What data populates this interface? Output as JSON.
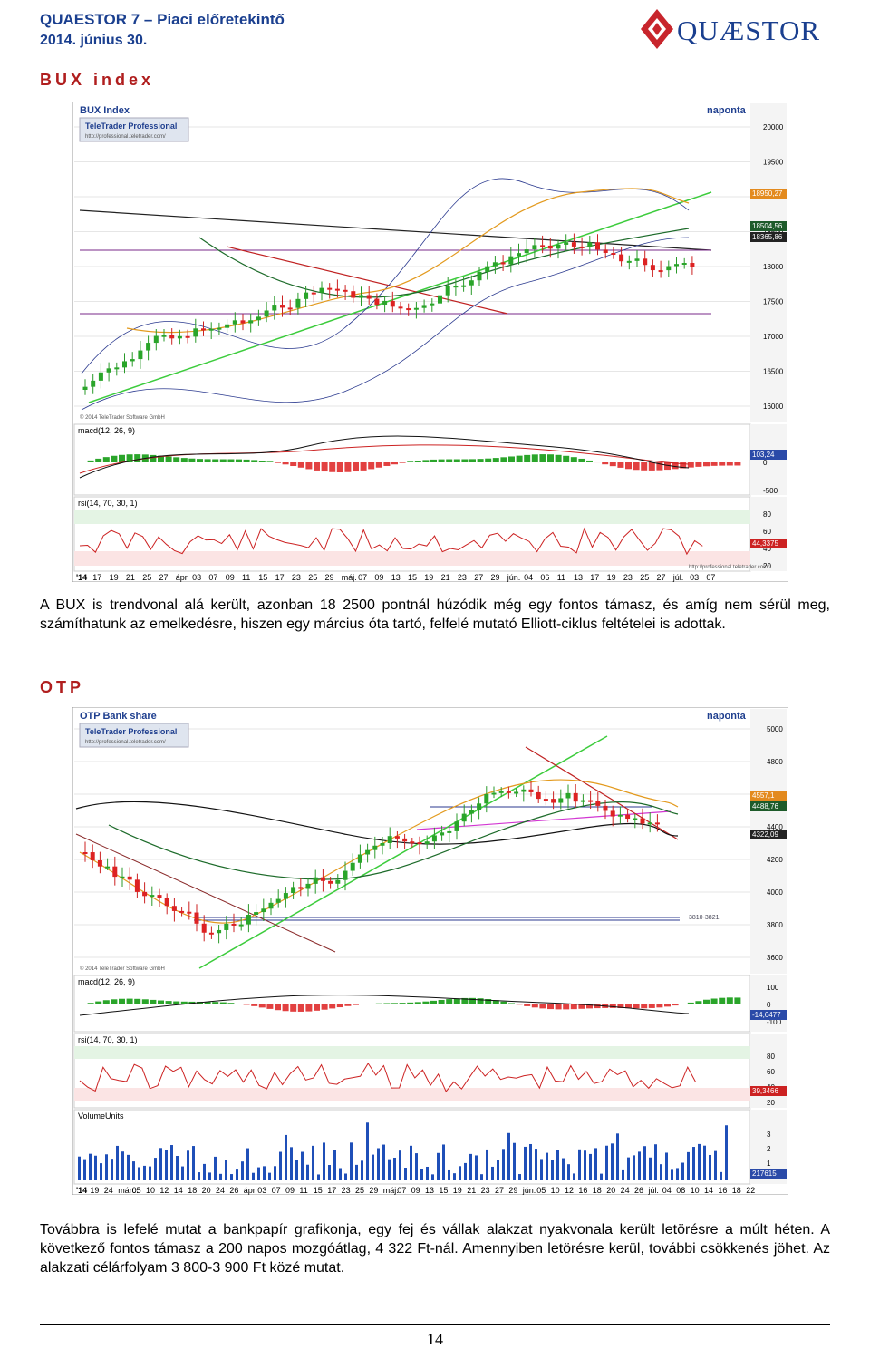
{
  "header": {
    "line1": "QUAESTOR 7 – Piaci előretekintő",
    "line2": "2014. június 30."
  },
  "logo": {
    "text": "QUÆSTOR",
    "color": "#b01e1e"
  },
  "sections": {
    "bux_heading": "BUX index",
    "otp_heading": "OTP"
  },
  "bux_chart": {
    "title": "BUX Index",
    "period": "naponta",
    "brand": "TeleTrader Professional",
    "brand_url": "http://professional.teletrader.com/",
    "copyright": "© 2014 TeleTrader Software GmbH",
    "footer_url": "http://professional.teletrader.com/",
    "price_ticks": [
      "20000",
      "19500",
      "19000",
      "18500",
      "18000",
      "17500",
      "17000",
      "16500",
      "16000"
    ],
    "price_labels": [
      "18950,27",
      "18504,56",
      "18365,86"
    ],
    "macd_label": "macd(12, 26, 9)",
    "macd_ticks": [
      "0",
      "-500"
    ],
    "macd_values": [
      "103,24"
    ],
    "rsi_label": "rsi(14, 70, 30, 1)",
    "rsi_ticks": [
      "80",
      "60",
      "40",
      "20"
    ],
    "rsi_value": "44,3375",
    "x_labels": [
      "'14",
      "17",
      "19",
      "21",
      "25",
      "27",
      "ápr.",
      "03",
      "07",
      "09",
      "11",
      "15",
      "17",
      "23",
      "25",
      "29",
      "máj.",
      "07",
      "09",
      "13",
      "15",
      "19",
      "21",
      "23",
      "27",
      "29",
      "jún.",
      "04",
      "06",
      "11",
      "13",
      "17",
      "19",
      "23",
      "25",
      "27",
      "júl.",
      "03",
      "07"
    ]
  },
  "bux_text": "A BUX is trendvonal alá került, azonban 18 2500 pontnál húzódik még egy fontos támasz, és amíg nem sérül meg, számíthatunk az emelkedésre, hiszen egy március óta tartó, felfelé mutató Elliott-ciklus feltételei is adottak.",
  "otp_chart": {
    "title": "OTP Bank share",
    "period": "naponta",
    "brand": "TeleTrader Professional",
    "brand_url": "http://professional.teletrader.com/",
    "copyright": "© 2014 TeleTrader Software GmbH",
    "footer_url": "http://professional.teletrader.com/",
    "price_ticks": [
      "5000",
      "4800",
      "4600",
      "4400",
      "4200",
      "4000",
      "3800",
      "3600"
    ],
    "price_labels": [
      "4557,1",
      "4488,76",
      "4322,09"
    ],
    "support_label": "3810-3821",
    "macd_label": "macd(12, 26, 9)",
    "macd_ticks": [
      "100",
      "0",
      "-100"
    ],
    "macd_value": "-14,6477",
    "rsi_label": "rsi(14, 70, 30, 1)",
    "rsi_ticks": [
      "80",
      "60",
      "40",
      "20"
    ],
    "rsi_value": "39,3466",
    "vol_label": "VolumeUnits",
    "vol_ticks": [
      "3",
      "2",
      "1"
    ],
    "vol_value": "217615",
    "x_labels": [
      "'14",
      "19",
      "24",
      "márc.",
      "05",
      "10",
      "12",
      "14",
      "18",
      "20",
      "24",
      "26",
      "ápr.",
      "03",
      "07",
      "09",
      "11",
      "15",
      "17",
      "23",
      "25",
      "29",
      "máj.",
      "07",
      "09",
      "13",
      "15",
      "19",
      "21",
      "23",
      "27",
      "29",
      "jún.",
      "05",
      "10",
      "12",
      "16",
      "18",
      "20",
      "24",
      "26",
      "júl.",
      "04",
      "08",
      "10",
      "14",
      "16",
      "18",
      "22"
    ]
  },
  "otp_text": "Továbbra is lefelé mutat a bankpapír grafikonja, egy fej és vállak alakzat nyakvonala került letörésre a múlt héten. A következő fontos támasz a 200 napos mozgóátlag, 4 322 Ft-nál. Amennyiben letörésre kerül, további csökkenés jöhet. Az alakzati célárfolyam 3 800-3 900 Ft közé mutat.",
  "page_number": "14"
}
